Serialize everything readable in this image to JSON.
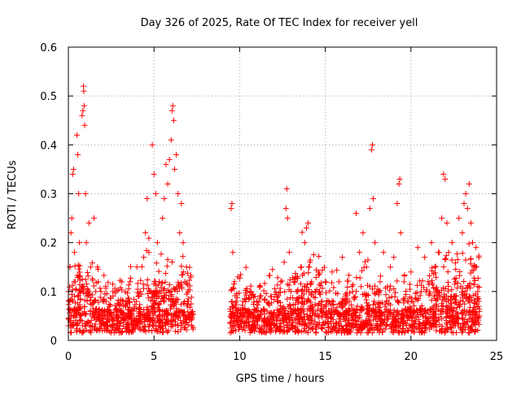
{
  "chart_data": {
    "type": "scatter",
    "title": "Day 326 of 2025, Rate Of TEC Index for receiver yell",
    "xlabel": "GPS time / hours",
    "ylabel": "ROTI / TECUs",
    "xlim": [
      0,
      25
    ],
    "ylim": [
      0,
      0.6
    ],
    "xticks": [
      0,
      5,
      10,
      15,
      20,
      25
    ],
    "xtick_labels": [
      "0",
      "5",
      "10",
      "15",
      "20",
      "25"
    ],
    "yticks": [
      0,
      0.1,
      0.2,
      0.3,
      0.4,
      0.5,
      0.6
    ],
    "ytick_labels": [
      "0",
      "0.1",
      "0.2",
      "0.3",
      "0.4",
      "0.5",
      "0.6"
    ],
    "grid": true,
    "marker": "+",
    "marker_color": "#ff0000",
    "data_gap_hours": [
      7.3,
      9.4
    ],
    "series": [
      {
        "name": "ROTI",
        "points": [
          [
            0.0,
            0.03
          ],
          [
            0.05,
            0.08
          ],
          [
            0.1,
            0.15
          ],
          [
            0.15,
            0.22
          ],
          [
            0.2,
            0.25
          ],
          [
            0.25,
            0.34
          ],
          [
            0.3,
            0.35
          ],
          [
            0.35,
            0.18
          ],
          [
            0.4,
            0.12
          ],
          [
            0.45,
            0.06
          ],
          [
            0.5,
            0.42
          ],
          [
            0.55,
            0.38
          ],
          [
            0.6,
            0.3
          ],
          [
            0.65,
            0.2
          ],
          [
            0.7,
            0.1
          ],
          [
            0.75,
            0.05
          ],
          [
            0.8,
            0.46
          ],
          [
            0.85,
            0.47
          ],
          [
            0.88,
            0.52
          ],
          [
            0.9,
            0.51
          ],
          [
            0.92,
            0.48
          ],
          [
            0.95,
            0.44
          ],
          [
            1.0,
            0.3
          ],
          [
            1.05,
            0.2
          ],
          [
            1.1,
            0.08
          ],
          [
            1.2,
            0.24
          ],
          [
            1.3,
            0.15
          ],
          [
            1.4,
            0.05
          ],
          [
            1.5,
            0.25
          ],
          [
            1.6,
            0.1
          ],
          [
            1.7,
            0.15
          ],
          [
            1.8,
            0.06
          ],
          [
            1.9,
            0.1
          ],
          [
            2.0,
            0.05
          ],
          [
            2.2,
            0.08
          ],
          [
            2.4,
            0.04
          ],
          [
            2.6,
            0.1
          ],
          [
            2.8,
            0.05
          ],
          [
            3.0,
            0.03
          ],
          [
            3.2,
            0.08
          ],
          [
            3.4,
            0.05
          ],
          [
            3.6,
            0.12
          ],
          [
            3.8,
            0.06
          ],
          [
            4.0,
            0.15
          ],
          [
            4.2,
            0.1
          ],
          [
            4.4,
            0.17
          ],
          [
            4.5,
            0.22
          ],
          [
            4.6,
            0.29
          ],
          [
            4.7,
            0.18
          ],
          [
            4.8,
            0.1
          ],
          [
            4.9,
            0.4
          ],
          [
            5.0,
            0.34
          ],
          [
            5.1,
            0.3
          ],
          [
            5.2,
            0.2
          ],
          [
            5.3,
            0.12
          ],
          [
            5.4,
            0.08
          ],
          [
            5.5,
            0.25
          ],
          [
            5.6,
            0.29
          ],
          [
            5.7,
            0.36
          ],
          [
            5.8,
            0.32
          ],
          [
            5.9,
            0.37
          ],
          [
            6.0,
            0.41
          ],
          [
            6.05,
            0.47
          ],
          [
            6.1,
            0.48
          ],
          [
            6.15,
            0.45
          ],
          [
            6.2,
            0.35
          ],
          [
            6.3,
            0.38
          ],
          [
            6.4,
            0.3
          ],
          [
            6.5,
            0.22
          ],
          [
            6.6,
            0.28
          ],
          [
            6.7,
            0.2
          ],
          [
            6.8,
            0.12
          ],
          [
            6.9,
            0.15
          ],
          [
            7.0,
            0.08
          ],
          [
            7.1,
            0.05
          ],
          [
            7.2,
            0.03
          ],
          [
            9.5,
            0.27
          ],
          [
            9.55,
            0.28
          ],
          [
            9.6,
            0.18
          ],
          [
            9.7,
            0.12
          ],
          [
            9.8,
            0.08
          ],
          [
            9.9,
            0.13
          ],
          [
            10.0,
            0.05
          ],
          [
            10.2,
            0.08
          ],
          [
            10.4,
            0.04
          ],
          [
            10.6,
            0.1
          ],
          [
            10.8,
            0.05
          ],
          [
            11.0,
            0.08
          ],
          [
            11.2,
            0.11
          ],
          [
            11.4,
            0.04
          ],
          [
            11.6,
            0.06
          ],
          [
            11.8,
            0.09
          ],
          [
            12.0,
            0.05
          ],
          [
            12.2,
            0.08
          ],
          [
            12.4,
            0.12
          ],
          [
            12.6,
            0.16
          ],
          [
            12.7,
            0.27
          ],
          [
            12.75,
            0.31
          ],
          [
            12.8,
            0.25
          ],
          [
            12.9,
            0.18
          ],
          [
            13.0,
            0.1
          ],
          [
            13.2,
            0.12
          ],
          [
            13.4,
            0.08
          ],
          [
            13.6,
            0.15
          ],
          [
            13.8,
            0.2
          ],
          [
            13.9,
            0.23
          ],
          [
            14.0,
            0.24
          ],
          [
            14.1,
            0.16
          ],
          [
            14.2,
            0.12
          ],
          [
            14.4,
            0.1
          ],
          [
            14.6,
            0.14
          ],
          [
            14.8,
            0.08
          ],
          [
            15.0,
            0.12
          ],
          [
            15.2,
            0.08
          ],
          [
            15.4,
            0.14
          ],
          [
            15.6,
            0.06
          ],
          [
            15.8,
            0.12
          ],
          [
            16.0,
            0.17
          ],
          [
            16.2,
            0.06
          ],
          [
            16.4,
            0.08
          ],
          [
            16.6,
            0.1
          ],
          [
            16.8,
            0.26
          ],
          [
            17.0,
            0.18
          ],
          [
            17.2,
            0.22
          ],
          [
            17.4,
            0.15
          ],
          [
            17.6,
            0.27
          ],
          [
            17.7,
            0.39
          ],
          [
            17.75,
            0.4
          ],
          [
            17.8,
            0.29
          ],
          [
            17.9,
            0.2
          ],
          [
            18.0,
            0.1
          ],
          [
            18.2,
            0.12
          ],
          [
            18.4,
            0.18
          ],
          [
            18.6,
            0.08
          ],
          [
            18.8,
            0.15
          ],
          [
            19.0,
            0.17
          ],
          [
            19.2,
            0.28
          ],
          [
            19.3,
            0.32
          ],
          [
            19.35,
            0.33
          ],
          [
            19.4,
            0.22
          ],
          [
            19.6,
            0.12
          ],
          [
            19.8,
            0.08
          ],
          [
            20.0,
            0.14
          ],
          [
            20.2,
            0.06
          ],
          [
            20.4,
            0.19
          ],
          [
            20.6,
            0.1
          ],
          [
            20.8,
            0.17
          ],
          [
            21.0,
            0.12
          ],
          [
            21.2,
            0.2
          ],
          [
            21.4,
            0.15
          ],
          [
            21.6,
            0.18
          ],
          [
            21.8,
            0.25
          ],
          [
            21.9,
            0.34
          ],
          [
            22.0,
            0.33
          ],
          [
            22.1,
            0.24
          ],
          [
            22.2,
            0.18
          ],
          [
            22.4,
            0.2
          ],
          [
            22.6,
            0.12
          ],
          [
            22.8,
            0.25
          ],
          [
            23.0,
            0.22
          ],
          [
            23.1,
            0.28
          ],
          [
            23.2,
            0.3
          ],
          [
            23.3,
            0.27
          ],
          [
            23.4,
            0.32
          ],
          [
            23.5,
            0.24
          ],
          [
            23.6,
            0.2
          ],
          [
            23.7,
            0.15
          ],
          [
            23.8,
            0.19
          ],
          [
            23.9,
            0.1
          ],
          [
            24.0,
            0.05
          ]
        ]
      }
    ]
  }
}
